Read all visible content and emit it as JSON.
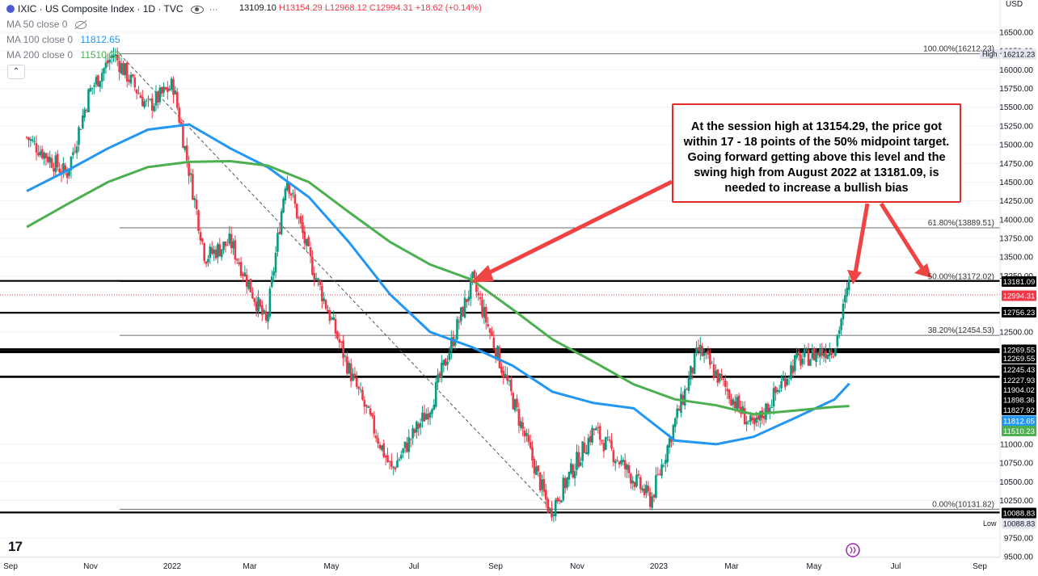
{
  "header": {
    "symbol_title": "IXIC · US Composite Index · 1D · TVC",
    "ohlc_open": "13109.10",
    "ohlc_high": "H13154.29",
    "ohlc_low": "L12968.12",
    "ohlc_close": "C12994.31",
    "ohlc_change": "+18.62 (+0.14%)",
    "more_label": "···"
  },
  "indicators": [
    {
      "label": "MA 50 close 0",
      "value": ""
    },
    {
      "label": "MA 100 close 0",
      "value": "11812.65",
      "color": "#2196f3"
    },
    {
      "label": "MA 200 close 0",
      "value": "11510.23",
      "color": "#4caf50"
    }
  ],
  "collapse_icon": "chevron-up-icon",
  "currency": "USD",
  "annotation": {
    "text": "At the session high at 13154.29, the price got within 17 - 18 points of the 50% midpoint target. Going forward getting above this level and the swing high from August 2022 at 13181.09, is needed to increase a bullish bias",
    "border_color": "#e22b2b"
  },
  "price_scale": {
    "ticks": [
      "16500.00",
      "16250.00",
      "16000.00",
      "15750.00",
      "15500.00",
      "15250.00",
      "15000.00",
      "14750.00",
      "14500.00",
      "14250.00",
      "14000.00",
      "13750.00",
      "13500.00",
      "13250.00",
      "12500.00",
      "11000.00",
      "10750.00",
      "10500.00",
      "10250.00",
      "9750.00",
      "9500.00"
    ],
    "high_label": "High",
    "low_label": "Low",
    "high_value": "16212.23",
    "low_value": "10088.83",
    "badges": [
      {
        "text": "13181.09",
        "bg": "#000000",
        "fg": "#ffffff"
      },
      {
        "text": "12994.31",
        "bg": "#f23645",
        "fg": "#ffffff"
      },
      {
        "text": "12756.23",
        "bg": "#000000",
        "fg": "#ffffff"
      },
      {
        "text": "12269.55",
        "bg": "#000000",
        "fg": "#ffffff"
      },
      {
        "text": "12269.55",
        "bg": "#000000",
        "fg": "#ffffff"
      },
      {
        "text": "12245.43",
        "bg": "#000000",
        "fg": "#ffffff"
      },
      {
        "text": "12227.93",
        "bg": "#000000",
        "fg": "#ffffff"
      },
      {
        "text": "11904.02",
        "bg": "#000000",
        "fg": "#ffffff"
      },
      {
        "text": "11898.36",
        "bg": "#000000",
        "fg": "#ffffff"
      },
      {
        "text": "11827.92",
        "bg": "#000000",
        "fg": "#ffffff"
      },
      {
        "text": "11812.65",
        "bg": "#2196f3",
        "fg": "#ffffff"
      },
      {
        "text": "11510.23",
        "bg": "#4caf50",
        "fg": "#ffffff"
      },
      {
        "text": "10088.83",
        "bg": "#000000",
        "fg": "#ffffff"
      }
    ]
  },
  "time_axis": [
    "Sep",
    "Nov",
    "2022",
    "Mar",
    "May",
    "Jul",
    "Sep",
    "Nov",
    "2023",
    "Mar",
    "May",
    "Jul",
    "Sep"
  ],
  "fibonacci": [
    {
      "label": "100.00%(16212.23)",
      "price": 16212.23
    },
    {
      "label": "61.80%(13889.51)",
      "price": 13889.51
    },
    {
      "label": "50.00%(13172.02)",
      "price": 13172.02
    },
    {
      "label": "38.20%(12454.53)",
      "price": 12454.53
    },
    {
      "label": "0.00%(10131.82)",
      "price": 10131.82
    }
  ],
  "horizontal_levels": [
    13181.09,
    12756.23,
    12269.55,
    12245.43,
    12227.93,
    11904.02,
    11898.36,
    10088.83
  ],
  "last_price": 12994.31,
  "chart_data": {
    "type": "candlestick",
    "title": "IXIC · US Composite Index · 1D · TVC",
    "ylim": [
      9500,
      16650
    ],
    "x_range": [
      "2021-09",
      "2023-09"
    ],
    "series": [
      {
        "name": "MA 100 close 0",
        "color": "#2196f3",
        "points": [
          [
            "2021-09",
            14380
          ],
          [
            "2021-10",
            14650
          ],
          [
            "2021-11",
            14950
          ],
          [
            "2021-12",
            15200
          ],
          [
            "2022-01",
            15270
          ],
          [
            "2022-02",
            14950
          ],
          [
            "2022-03",
            14700
          ],
          [
            "2022-04",
            14300
          ],
          [
            "2022-05",
            13700
          ],
          [
            "2022-06",
            13000
          ],
          [
            "2022-07",
            12500
          ],
          [
            "2022-08",
            12300
          ],
          [
            "2022-09",
            12050
          ],
          [
            "2022-10",
            11700
          ],
          [
            "2022-11",
            11550
          ],
          [
            "2022-12",
            11480
          ],
          [
            "2023-01",
            11050
          ],
          [
            "2023-02",
            11000
          ],
          [
            "2023-03",
            11100
          ],
          [
            "2023-04",
            11350
          ],
          [
            "2023-05",
            11600
          ],
          [
            "2023-05-26",
            11812.65
          ]
        ]
      },
      {
        "name": "MA 200 close 0",
        "color": "#4caf50",
        "points": [
          [
            "2021-09",
            13900
          ],
          [
            "2021-10",
            14200
          ],
          [
            "2021-11",
            14500
          ],
          [
            "2021-12",
            14700
          ],
          [
            "2022-01",
            14770
          ],
          [
            "2022-02",
            14780
          ],
          [
            "2022-03",
            14720
          ],
          [
            "2022-04",
            14500
          ],
          [
            "2022-05",
            14100
          ],
          [
            "2022-06",
            13700
          ],
          [
            "2022-07",
            13400
          ],
          [
            "2022-08",
            13200
          ],
          [
            "2022-09",
            12800
          ],
          [
            "2022-10",
            12400
          ],
          [
            "2022-11",
            12100
          ],
          [
            "2022-12",
            11800
          ],
          [
            "2023-01",
            11600
          ],
          [
            "2023-02",
            11520
          ],
          [
            "2023-03",
            11400
          ],
          [
            "2023-04",
            11450
          ],
          [
            "2023-05",
            11500
          ],
          [
            "2023-05-26",
            11510.23
          ]
        ]
      },
      {
        "name": "price",
        "points": [
          [
            "2021-09",
            15100
          ],
          [
            "2021-10",
            14600
          ],
          [
            "2021-11-01",
            15700
          ],
          [
            "2021-11-19",
            16212.23
          ],
          [
            "2021-12",
            15500
          ],
          [
            "2022-01-03",
            15800
          ],
          [
            "2022-01-27",
            13500
          ],
          [
            "2022-02",
            13700
          ],
          [
            "2022-03-14",
            12600
          ],
          [
            "2022-03-29",
            14600
          ],
          [
            "2022-04",
            13500
          ],
          [
            "2022-05",
            12000
          ],
          [
            "2022-06-16",
            10650
          ],
          [
            "2022-07",
            11500
          ],
          [
            "2022-08-16",
            13181.09
          ],
          [
            "2022-09",
            11600
          ],
          [
            "2022-10-13",
            10088.83
          ],
          [
            "2022-11",
            11200
          ],
          [
            "2022-12-28",
            10250
          ],
          [
            "2023-01",
            11300
          ],
          [
            "2023-02-02",
            12269.55
          ],
          [
            "2023-03",
            11200
          ],
          [
            "2023-04",
            12100
          ],
          [
            "2023-05",
            12300
          ],
          [
            "2023-05-26",
            13154.29
          ]
        ]
      }
    ]
  }
}
